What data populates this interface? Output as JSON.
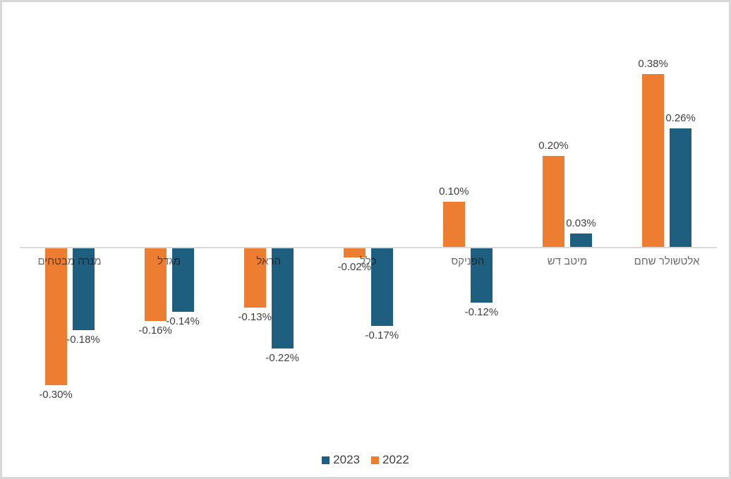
{
  "chart_data": {
    "type": "bar",
    "title": "",
    "xlabel": "",
    "ylabel": "",
    "value_format": "percent",
    "grid": false,
    "legend_position": "bottom-center",
    "categories": [
      "מנרה מבטחים",
      "מגדל",
      "הראל",
      "כלל",
      "הפניקס",
      "מיטב דש",
      "אלטשולר שחם"
    ],
    "pair_order": [
      "2022",
      "2023"
    ],
    "series": [
      {
        "name": "2022",
        "color": "#ED7D31",
        "values": [
          -0.3,
          -0.16,
          -0.13,
          -0.02,
          0.1,
          0.2,
          0.38
        ],
        "labels": [
          "-0.30%",
          "-0.16%",
          "-0.13%",
          "-0.02%",
          "0.10%",
          "0.20%",
          "0.38%"
        ]
      },
      {
        "name": "2023",
        "color": "#1E5F80",
        "values": [
          -0.18,
          -0.14,
          -0.22,
          -0.17,
          -0.12,
          0.03,
          0.26
        ],
        "labels": [
          "-0.18%",
          "-0.14%",
          "-0.22%",
          "-0.17%",
          "-0.12%",
          "0.03%",
          "0.26%"
        ]
      }
    ],
    "ylim": [
      -0.35,
      0.45
    ],
    "axis": {
      "zero_line_color": "#D9D9D9",
      "category_label_color": "#696969",
      "data_label_color": "#404040"
    }
  },
  "legend": {
    "items": [
      {
        "label": "2023",
        "color": "#1E5F80"
      },
      {
        "label": "2022",
        "color": "#ED7D31"
      }
    ]
  }
}
